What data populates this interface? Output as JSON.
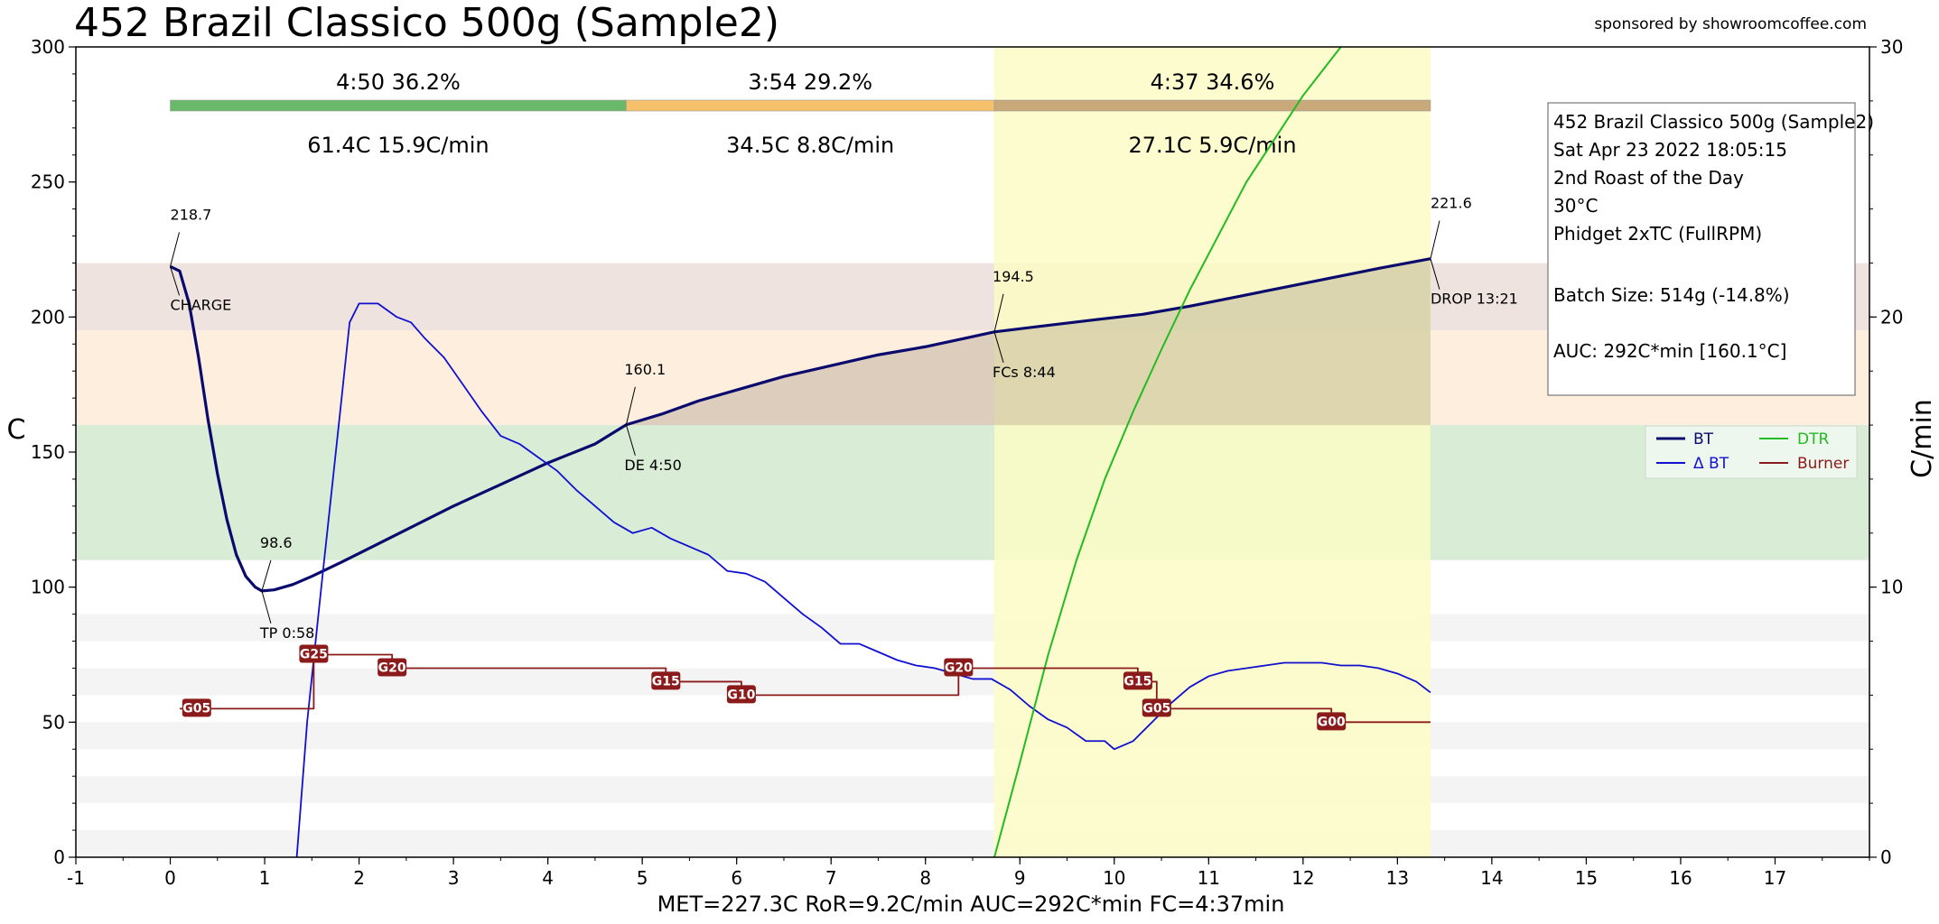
{
  "title": "452 Brazil Classico 500g (Sample2)",
  "sponsor": "sponsored by showroomcoffee.com",
  "stats_line": "MET=227.3C   RoR=9.2C/min   AUC=292C*min   FC=4:37min",
  "colors": {
    "bt": "#0a0a6e",
    "dbt": "#1010d0",
    "dtr": "#22bb22",
    "burner": "#8b1a1a",
    "phase_dry": "#6ab96a",
    "phase_maillard": "#f5c26b",
    "phase_dev": "#c9a87a",
    "band_green": "#d8ecd6",
    "band_orange": "#fdeedd",
    "band_brown": "#efe3df",
    "dev_highlight": "#fbfbc5"
  },
  "info_box": {
    "lines": [
      "452 Brazil Classico 500g (Sample2)",
      "Sat Apr 23 2022 18:05:15",
      "2nd Roast of the Day",
      "30°C",
      "Phidget 2xTC (FullRPM)",
      "",
      "Batch Size: 514g (-14.8%)",
      "",
      "AUC: 292C*min [160.1°C]"
    ]
  },
  "phases": [
    {
      "time": "4:50",
      "pct": "36.2%",
      "delta": "61.4C",
      "rate": "15.9C/min",
      "start": 0,
      "end": 4.83
    },
    {
      "time": "3:54",
      "pct": "29.2%",
      "delta": "34.5C",
      "rate": "8.8C/min",
      "start": 4.83,
      "end": 8.73
    },
    {
      "time": "4:37",
      "pct": "34.6%",
      "delta": "27.1C",
      "rate": "5.9C/min",
      "start": 8.73,
      "end": 13.35
    }
  ],
  "chart_data": {
    "type": "line",
    "xlabel": "",
    "ylabel": "C",
    "y2label": "C/min",
    "xlim": [
      -1,
      18
    ],
    "ylim": [
      0,
      300
    ],
    "y2lim": [
      0,
      30
    ],
    "x_ticks": [
      -1,
      0,
      1,
      2,
      3,
      4,
      5,
      6,
      7,
      8,
      9,
      10,
      11,
      12,
      13,
      14,
      15,
      16,
      17
    ],
    "y_ticks": [
      0,
      50,
      100,
      150,
      200,
      250,
      300
    ],
    "y2_ticks": [
      0,
      10,
      20,
      30
    ],
    "legend": {
      "position": "right",
      "entries": [
        {
          "label": "BT",
          "color": "#0a0a6e"
        },
        {
          "label": "DTR",
          "color": "#22bb22"
        },
        {
          "label": "Δ BT",
          "color": "#1010d0"
        },
        {
          "label": "Burner",
          "color": "#8b1a1a"
        }
      ]
    },
    "bands": [
      {
        "y0": 160,
        "y1": 220,
        "color": "#efe3df"
      },
      {
        "y0": 195,
        "y1": 220,
        "color": "#efe3df"
      },
      {
        "y0": 160,
        "y1": 195,
        "color": "#fdeedd"
      },
      {
        "y0": 110,
        "y1": 160,
        "color": "#d8ecd6"
      }
    ],
    "dev_range": [
      8.73,
      13.35
    ],
    "series": [
      {
        "name": "BT",
        "axis": "left",
        "points": [
          [
            0,
            218.7
          ],
          [
            0.1,
            217
          ],
          [
            0.2,
            205
          ],
          [
            0.3,
            185
          ],
          [
            0.4,
            162
          ],
          [
            0.5,
            142
          ],
          [
            0.6,
            125
          ],
          [
            0.7,
            112
          ],
          [
            0.8,
            104
          ],
          [
            0.9,
            100
          ],
          [
            0.97,
            98.6
          ],
          [
            1.1,
            99
          ],
          [
            1.3,
            101
          ],
          [
            1.5,
            104
          ],
          [
            1.8,
            109
          ],
          [
            2.2,
            116
          ],
          [
            2.6,
            123
          ],
          [
            3,
            130
          ],
          [
            3.5,
            138
          ],
          [
            4,
            146
          ],
          [
            4.5,
            153
          ],
          [
            4.83,
            160.1
          ],
          [
            5.2,
            164
          ],
          [
            5.6,
            169
          ],
          [
            6,
            173
          ],
          [
            6.5,
            178
          ],
          [
            7,
            182
          ],
          [
            7.5,
            186
          ],
          [
            8,
            189
          ],
          [
            8.4,
            192
          ],
          [
            8.73,
            194.5
          ],
          [
            9.2,
            196.5
          ],
          [
            9.8,
            199
          ],
          [
            10.3,
            201
          ],
          [
            10.8,
            204
          ],
          [
            11.3,
            207.5
          ],
          [
            11.8,
            211
          ],
          [
            12.3,
            214.5
          ],
          [
            12.8,
            218
          ],
          [
            13.35,
            221.6
          ]
        ]
      },
      {
        "name": "Δ BT",
        "axis": "right",
        "points": [
          [
            1.34,
            0
          ],
          [
            1.45,
            5
          ],
          [
            1.6,
            10
          ],
          [
            1.8,
            16.5
          ],
          [
            1.9,
            19.8
          ],
          [
            2,
            20.5
          ],
          [
            2.2,
            20.5
          ],
          [
            2.4,
            20
          ],
          [
            2.55,
            19.8
          ],
          [
            2.7,
            19.2
          ],
          [
            2.9,
            18.5
          ],
          [
            3.1,
            17.5
          ],
          [
            3.3,
            16.5
          ],
          [
            3.5,
            15.6
          ],
          [
            3.7,
            15.3
          ],
          [
            3.9,
            14.8
          ],
          [
            4.1,
            14.3
          ],
          [
            4.3,
            13.6
          ],
          [
            4.5,
            13
          ],
          [
            4.7,
            12.4
          ],
          [
            4.9,
            12
          ],
          [
            5.1,
            12.2
          ],
          [
            5.3,
            11.8
          ],
          [
            5.5,
            11.5
          ],
          [
            5.7,
            11.2
          ],
          [
            5.9,
            10.6
          ],
          [
            6.1,
            10.5
          ],
          [
            6.3,
            10.2
          ],
          [
            6.5,
            9.6
          ],
          [
            6.7,
            9
          ],
          [
            6.9,
            8.5
          ],
          [
            7.1,
            7.9
          ],
          [
            7.3,
            7.9
          ],
          [
            7.5,
            7.6
          ],
          [
            7.7,
            7.3
          ],
          [
            7.9,
            7.1
          ],
          [
            8.1,
            7
          ],
          [
            8.3,
            6.8
          ],
          [
            8.5,
            6.6
          ],
          [
            8.7,
            6.6
          ],
          [
            8.9,
            6.2
          ],
          [
            9.1,
            5.6
          ],
          [
            9.3,
            5.1
          ],
          [
            9.5,
            4.8
          ],
          [
            9.7,
            4.3
          ],
          [
            9.9,
            4.3
          ],
          [
            10.0,
            4.0
          ],
          [
            10.2,
            4.3
          ],
          [
            10.4,
            5.0
          ],
          [
            10.6,
            5.7
          ],
          [
            10.8,
            6.3
          ],
          [
            11.0,
            6.7
          ],
          [
            11.2,
            6.9
          ],
          [
            11.4,
            7.0
          ],
          [
            11.6,
            7.1
          ],
          [
            11.8,
            7.2
          ],
          [
            12.0,
            7.2
          ],
          [
            12.2,
            7.2
          ],
          [
            12.4,
            7.1
          ],
          [
            12.6,
            7.1
          ],
          [
            12.8,
            7.0
          ],
          [
            13.0,
            6.8
          ],
          [
            13.2,
            6.5
          ],
          [
            13.35,
            6.1
          ]
        ]
      },
      {
        "name": "DTR",
        "axis": "left",
        "points": [
          [
            8.73,
            0
          ],
          [
            9,
            35
          ],
          [
            9.3,
            75
          ],
          [
            9.6,
            110
          ],
          [
            9.9,
            140
          ],
          [
            10.2,
            165
          ],
          [
            10.5,
            188
          ],
          [
            10.8,
            210
          ],
          [
            11.1,
            230
          ],
          [
            11.4,
            250
          ],
          [
            11.7,
            266
          ],
          [
            12,
            282
          ],
          [
            12.4,
            300
          ]
        ]
      },
      {
        "name": "Burner",
        "axis": "left",
        "points": [
          [
            0.1,
            55
          ],
          [
            1.52,
            55
          ],
          [
            1.52,
            75
          ],
          [
            2.35,
            75
          ],
          [
            2.35,
            70
          ],
          [
            5.25,
            70
          ],
          [
            5.25,
            65
          ],
          [
            6.05,
            65
          ],
          [
            6.05,
            60
          ],
          [
            8.35,
            60
          ],
          [
            8.35,
            70
          ],
          [
            10.25,
            70
          ],
          [
            10.25,
            65
          ],
          [
            10.45,
            65
          ],
          [
            10.45,
            55
          ],
          [
            12.3,
            55
          ],
          [
            12.3,
            50
          ],
          [
            13.35,
            50
          ]
        ]
      }
    ],
    "burner_labels": [
      {
        "x": 0.28,
        "y": 55,
        "text": "G05"
      },
      {
        "x": 1.52,
        "y": 75,
        "text": "G25"
      },
      {
        "x": 2.35,
        "y": 70,
        "text": "G20"
      },
      {
        "x": 5.25,
        "y": 65,
        "text": "G15"
      },
      {
        "x": 6.05,
        "y": 60,
        "text": "G10"
      },
      {
        "x": 8.35,
        "y": 70,
        "text": "G20"
      },
      {
        "x": 10.25,
        "y": 65,
        "text": "G15"
      },
      {
        "x": 10.45,
        "y": 55,
        "text": "G05"
      },
      {
        "x": 12.3,
        "y": 50,
        "text": "G00"
      }
    ],
    "events": [
      {
        "x": 0,
        "y": 218.7,
        "value": "218.7",
        "label": "CHARGE"
      },
      {
        "x": 0.97,
        "y": 98.6,
        "value": "98.6",
        "label": "TP 0:58"
      },
      {
        "x": 4.83,
        "y": 160.1,
        "value": "160.1",
        "label": "DE 4:50"
      },
      {
        "x": 8.73,
        "y": 194.5,
        "value": "194.5",
        "label": "FCs 8:44"
      },
      {
        "x": 13.35,
        "y": 221.6,
        "value": "221.6",
        "label": "DROP 13:21"
      }
    ]
  }
}
